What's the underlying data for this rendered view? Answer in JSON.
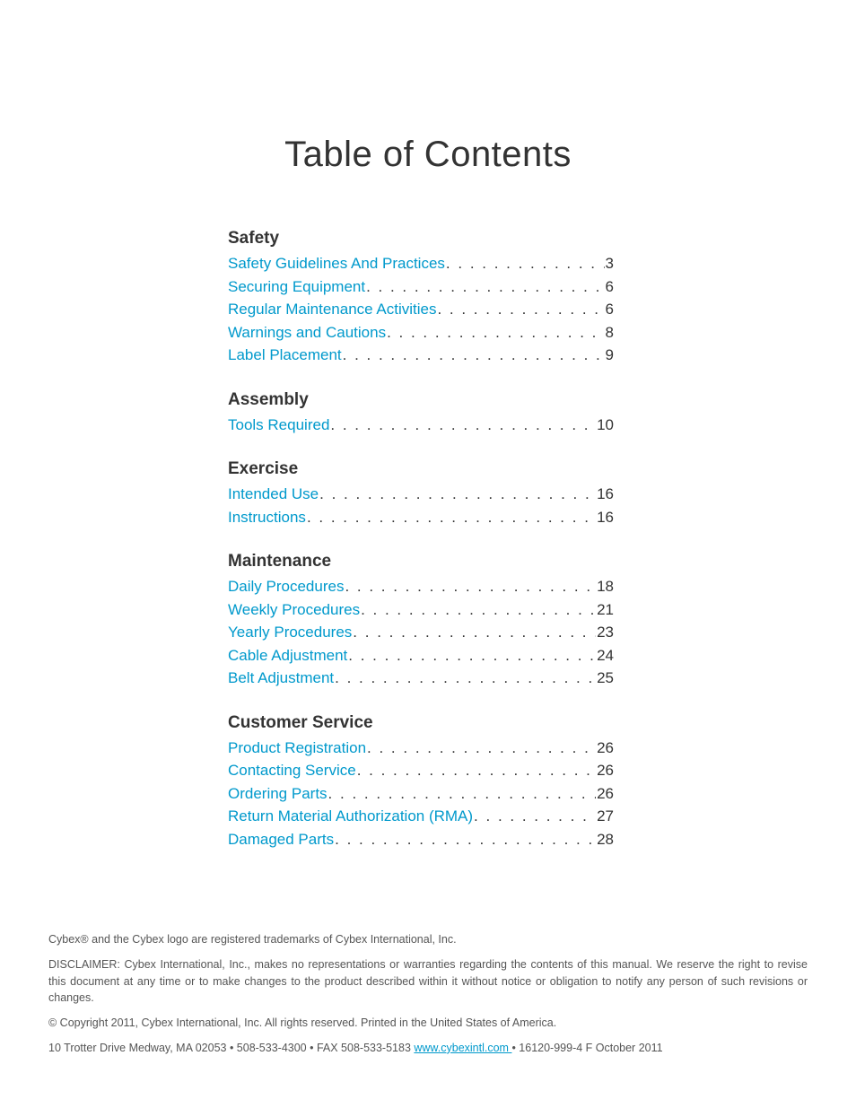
{
  "title": "Table of Contents",
  "link_color": "#0099cc",
  "text_color": "#333333",
  "footer_color": "#555555",
  "background_color": "#ffffff",
  "title_fontsize": 40,
  "heading_fontsize": 19,
  "entry_fontsize": 17,
  "footer_fontsize": 12.5,
  "toc_width": 430,
  "toc_left_margin": 200,
  "sections": [
    {
      "heading": "Safety",
      "entries": [
        {
          "label": "Safety Guidelines And Practices",
          "page": "3"
        },
        {
          "label": "Securing Equipment",
          "page": "6"
        },
        {
          "label": "Regular Maintenance Activities",
          "page": "6"
        },
        {
          "label": "Warnings and Cautions",
          "page": "8"
        },
        {
          "label": "Label Placement",
          "page": "9"
        }
      ]
    },
    {
      "heading": "Assembly",
      "entries": [
        {
          "label": "Tools Required",
          "page": "10"
        }
      ]
    },
    {
      "heading": "Exercise",
      "entries": [
        {
          "label": "Intended Use",
          "page": "16"
        },
        {
          "label": "Instructions",
          "page": "16"
        }
      ]
    },
    {
      "heading": "Maintenance",
      "entries": [
        {
          "label": "Daily Procedures",
          "page": "18"
        },
        {
          "label": "Weekly Procedures",
          "page": "21"
        },
        {
          "label": "Yearly Procedures",
          "page": "23"
        },
        {
          "label": "Cable Adjustment",
          "page": "24"
        },
        {
          "label": "Belt Adjustment",
          "page": "25"
        }
      ]
    },
    {
      "heading": "Customer Service",
      "entries": [
        {
          "label": "Product Registration",
          "page": "26"
        },
        {
          "label": "Contacting Service",
          "page": "26"
        },
        {
          "label": "Ordering Parts",
          "page": "26"
        },
        {
          "label": "Return Material Authorization (RMA)",
          "page": "27"
        },
        {
          "label": "Damaged Parts",
          "page": "28"
        }
      ]
    }
  ],
  "footer": {
    "trademark": "Cybex® and the Cybex logo are registered trademarks of Cybex International, Inc.",
    "disclaimer": "DISCLAIMER: Cybex International, Inc., makes no representations or warranties regarding the contents of this manual. We reserve the right to revise this document at any time or to make changes to the product described within it without notice or obligation to notify any person of such revisions or changes.",
    "copyright": "© Copyright 2011, Cybex International, Inc. All rights reserved. Printed in the United States of America.",
    "contact_pre": "10 Trotter Drive Medway, MA 02053 • 508-533-4300 • FAX 508-533-5183 ",
    "contact_link": "www.cybexintl.com ",
    "contact_post": "• 16120-999-4 F October 2011"
  }
}
